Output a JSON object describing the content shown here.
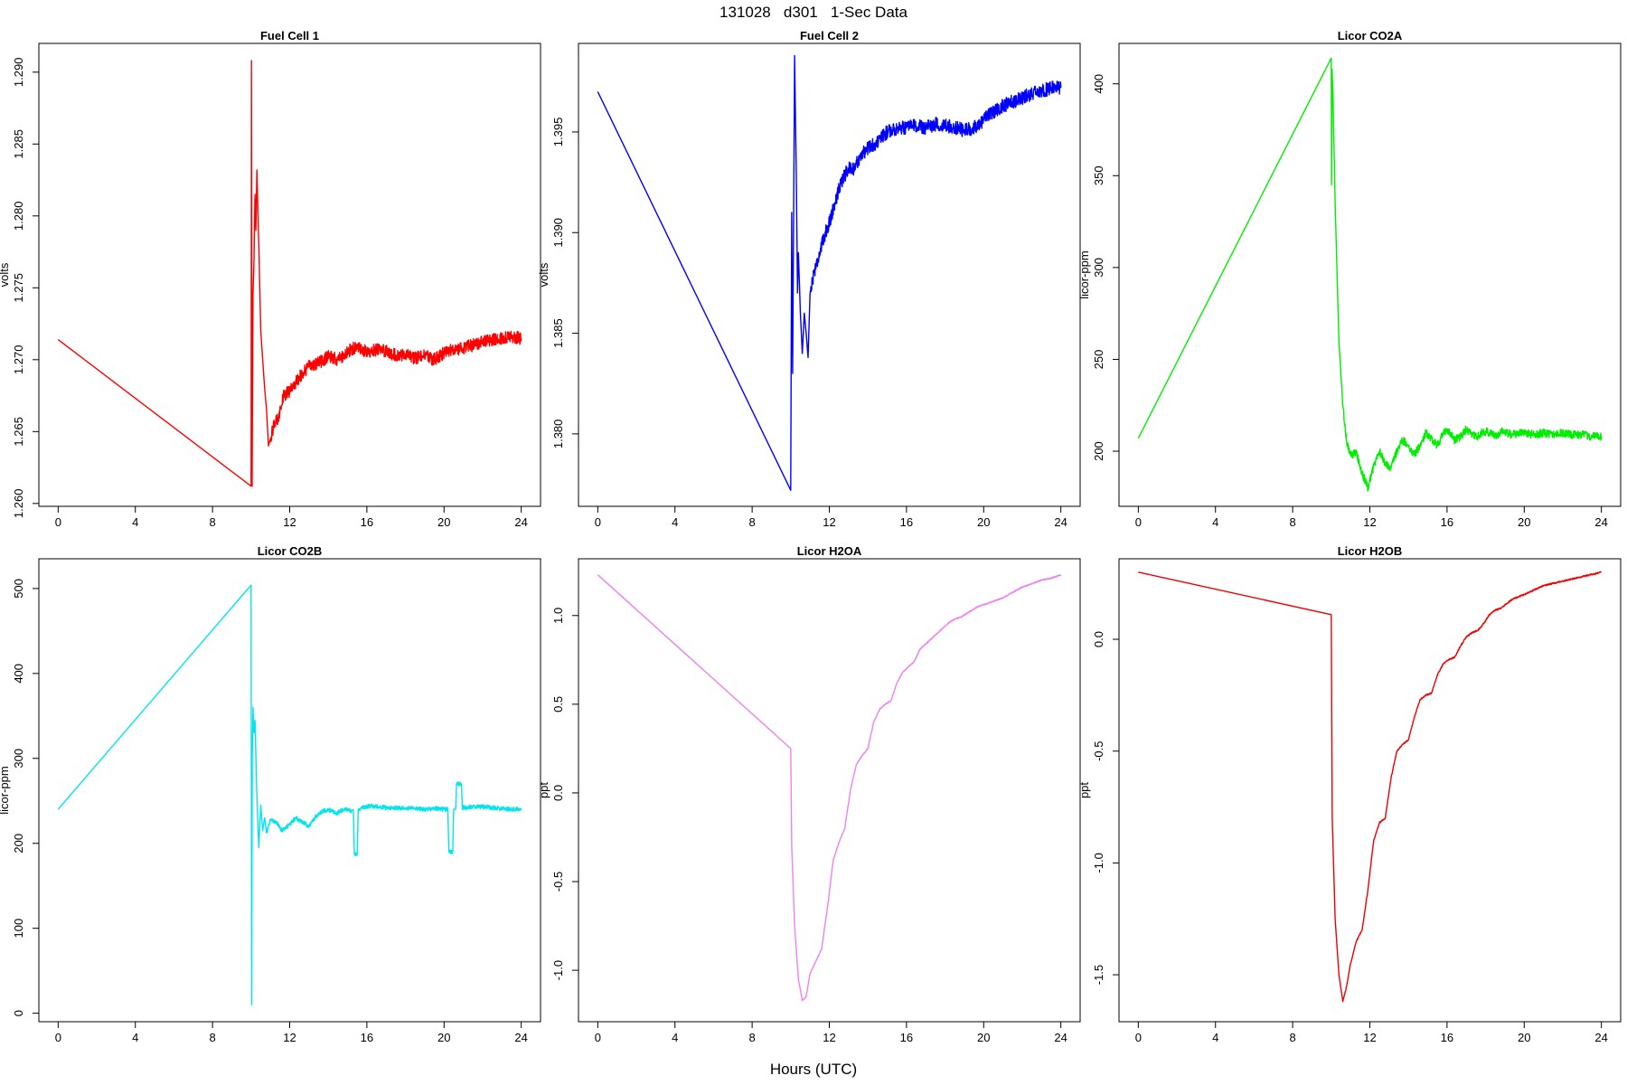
{
  "figure": {
    "title": "131028   d301   1-Sec Data",
    "xlabel": "Hours (UTC)"
  },
  "chart_data": [
    {
      "type": "line",
      "title": "Fuel Cell 1",
      "ylabel": "volts",
      "color": "#ff0000",
      "xlim": [
        -1,
        25
      ],
      "ylim": [
        1.2598,
        1.292
      ],
      "xticks": [
        0,
        4,
        8,
        12,
        16,
        20,
        24
      ],
      "yticks": [
        "1.260",
        "1.265",
        "1.270",
        "1.275",
        "1.280",
        "1.285",
        "1.290"
      ],
      "x": [
        0,
        10,
        10.02,
        10.05,
        10.1,
        10.15,
        10.2,
        10.25,
        10.3,
        10.4,
        10.5,
        10.6,
        10.7,
        10.8,
        10.9,
        11,
        11.2,
        11.4,
        11.7,
        12,
        12.5,
        13,
        13.5,
        14,
        14.5,
        15,
        15.5,
        16,
        16.5,
        17,
        17.5,
        18,
        18.5,
        19,
        19.5,
        20,
        20.5,
        21,
        21.5,
        22,
        22.5,
        23,
        23.5,
        24
      ],
      "y": [
        1.2714,
        1.2612,
        1.2908,
        1.2612,
        1.2745,
        1.277,
        1.2815,
        1.279,
        1.2832,
        1.278,
        1.272,
        1.27,
        1.268,
        1.2665,
        1.264,
        1.2645,
        1.2655,
        1.266,
        1.2675,
        1.2678,
        1.2688,
        1.2695,
        1.2698,
        1.2702,
        1.27,
        1.2705,
        1.271,
        1.2705,
        1.2707,
        1.2706,
        1.2703,
        1.2704,
        1.2701,
        1.2703,
        1.27,
        1.2705,
        1.2707,
        1.2708,
        1.271,
        1.2713,
        1.2714,
        1.2715,
        1.2716,
        1.2715
      ],
      "noise": 0.00045
    },
    {
      "type": "line",
      "title": "Fuel Cell 2",
      "ylabel": "volts",
      "color": "#0000ff",
      "xlim": [
        -1,
        25
      ],
      "ylim": [
        1.3764,
        1.3994
      ],
      "xticks": [
        0,
        4,
        8,
        12,
        16,
        20,
        24
      ],
      "yticks": [
        "1.380",
        "1.385",
        "1.390",
        "1.395"
      ],
      "x": [
        0,
        10,
        10.05,
        10.1,
        10.2,
        10.3,
        10.35,
        10.4,
        10.5,
        10.6,
        10.7,
        10.8,
        10.9,
        11,
        11.2,
        11.5,
        11.8,
        12,
        12.3,
        12.6,
        13,
        13.3,
        13.6,
        14,
        14.5,
        15,
        15.5,
        16,
        16.5,
        17,
        17.5,
        18,
        18.5,
        19,
        19.5,
        20,
        20.5,
        21,
        21.5,
        22,
        22.5,
        23,
        23.5,
        24
      ],
      "y": [
        1.397,
        1.3772,
        1.391,
        1.383,
        1.3988,
        1.392,
        1.387,
        1.389,
        1.386,
        1.384,
        1.386,
        1.385,
        1.3838,
        1.387,
        1.388,
        1.389,
        1.39,
        1.3905,
        1.3915,
        1.3925,
        1.3932,
        1.3932,
        1.3938,
        1.3942,
        1.3945,
        1.395,
        1.3952,
        1.3952,
        1.3953,
        1.3952,
        1.3954,
        1.3953,
        1.3952,
        1.3951,
        1.3952,
        1.3956,
        1.396,
        1.3963,
        1.3965,
        1.3967,
        1.3969,
        1.397,
        1.3972,
        1.3972
      ],
      "noise": 0.00035
    },
    {
      "type": "line",
      "title": "Licor CO2A",
      "ylabel": "licor-ppm",
      "color": "#00ee00",
      "xlim": [
        -1,
        25
      ],
      "ylim": [
        170,
        422
      ],
      "xticks": [
        0,
        4,
        8,
        12,
        16,
        20,
        24
      ],
      "yticks": [
        "200",
        "250",
        "300",
        "350",
        "400"
      ],
      "x": [
        0,
        10,
        10.02,
        10.04,
        10.1,
        10.2,
        10.4,
        10.6,
        10.8,
        11,
        11.3,
        11.6,
        11.9,
        12.2,
        12.5,
        12.8,
        13.1,
        13.4,
        13.7,
        14,
        14.3,
        14.6,
        14.9,
        15.2,
        15.5,
        15.8,
        16.1,
        16.4,
        16.7,
        17,
        17.3,
        17.6,
        17.9,
        18.2,
        18.5,
        18.8,
        19.1,
        19.4,
        19.7,
        20,
        20.5,
        21,
        21.5,
        22,
        22.5,
        23,
        23.5,
        24
      ],
      "y": [
        207,
        414,
        345,
        408,
        390,
        335,
        260,
        225,
        205,
        198,
        199,
        188,
        180,
        192,
        200,
        193,
        191,
        200,
        206,
        203,
        198,
        203,
        210,
        207,
        203,
        210,
        211,
        206,
        208,
        212,
        209,
        208,
        211,
        210,
        208,
        211,
        210,
        209,
        210,
        210,
        209,
        210,
        209,
        210,
        209,
        209,
        208,
        208
      ],
      "noise": 2.2
    },
    {
      "type": "line",
      "title": "Licor CO2B",
      "ylabel": "licor-ppm",
      "color": "#00e5ee",
      "xlim": [
        -1,
        25
      ],
      "ylim": [
        -10,
        535
      ],
      "xticks": [
        0,
        4,
        8,
        12,
        16,
        20,
        24
      ],
      "yticks": [
        "0",
        "100",
        "200",
        "300",
        "400",
        "500"
      ],
      "x": [
        0,
        10,
        10.03,
        10.06,
        10.1,
        10.15,
        10.2,
        10.3,
        10.4,
        10.5,
        10.6,
        10.7,
        10.8,
        11,
        11.3,
        11.6,
        12,
        12.3,
        12.6,
        13,
        13.3,
        13.6,
        14,
        14.4,
        14.8,
        15.2,
        15.3,
        15.35,
        15.5,
        15.55,
        15.8,
        16.2,
        16.6,
        17,
        17.5,
        18,
        18.5,
        19,
        19.5,
        20,
        20.2,
        20.25,
        20.45,
        20.5,
        20.6,
        20.65,
        20.9,
        20.95,
        21.5,
        22,
        22.5,
        23,
        23.5,
        24
      ],
      "y": [
        240,
        504,
        10,
        300,
        360,
        330,
        345,
        255,
        195,
        245,
        215,
        230,
        212,
        228,
        225,
        215,
        222,
        230,
        226,
        220,
        230,
        237,
        240,
        235,
        240,
        238,
        240,
        188,
        188,
        240,
        242,
        244,
        243,
        242,
        242,
        241,
        241,
        240,
        241,
        240,
        240,
        190,
        190,
        240,
        240,
        270,
        270,
        242,
        243,
        243,
        242,
        241,
        240,
        240
      ],
      "noise": 2.5
    },
    {
      "type": "line",
      "title": "Licor H2OA",
      "ylabel": "ppt",
      "color": "#ee82ee",
      "xlim": [
        -1,
        25
      ],
      "ylim": [
        -1.29,
        1.32
      ],
      "xticks": [
        0,
        4,
        8,
        12,
        16,
        20,
        24
      ],
      "yticks": [
        "-1.0",
        "-0.5",
        "0.0",
        "0.5",
        "1.0"
      ],
      "x": [
        0,
        10,
        10.05,
        10.2,
        10.4,
        10.6,
        10.8,
        11,
        11.3,
        11.6,
        11.9,
        12.2,
        12.5,
        12.8,
        13.1,
        13.4,
        13.7,
        14,
        14.3,
        14.6,
        14.9,
        15.2,
        15.5,
        15.8,
        16.1,
        16.4,
        16.7,
        17,
        17.3,
        17.6,
        17.9,
        18.2,
        18.5,
        18.8,
        19.1,
        19.4,
        19.7,
        20,
        20.5,
        21,
        21.5,
        22,
        22.5,
        23,
        23.5,
        24
      ],
      "y": [
        1.23,
        0.25,
        -0.3,
        -0.75,
        -1.05,
        -1.17,
        -1.15,
        -1.02,
        -0.95,
        -0.88,
        -0.65,
        -0.38,
        -0.28,
        -0.2,
        0.02,
        0.16,
        0.21,
        0.25,
        0.4,
        0.47,
        0.5,
        0.52,
        0.62,
        0.68,
        0.71,
        0.74,
        0.81,
        0.84,
        0.87,
        0.9,
        0.93,
        0.96,
        0.98,
        0.99,
        1.01,
        1.03,
        1.05,
        1.06,
        1.08,
        1.1,
        1.13,
        1.16,
        1.18,
        1.2,
        1.21,
        1.23
      ],
      "noise": 0.003
    },
    {
      "type": "line",
      "title": "Licor H2OB",
      "ylabel": "ppt",
      "color": "#ee0000",
      "xlim": [
        -1,
        25
      ],
      "ylim": [
        -1.71,
        0.36
      ],
      "xticks": [
        0,
        4,
        8,
        12,
        16,
        20,
        24
      ],
      "yticks": [
        "-1.5",
        "-1.0",
        "-0.5",
        "0.0"
      ],
      "x": [
        0,
        10,
        10.05,
        10.2,
        10.4,
        10.6,
        10.8,
        11,
        11.3,
        11.6,
        11.9,
        12.2,
        12.5,
        12.8,
        13.1,
        13.4,
        13.7,
        14,
        14.3,
        14.6,
        14.9,
        15.2,
        15.5,
        15.8,
        16.1,
        16.4,
        16.7,
        17,
        17.3,
        17.6,
        17.9,
        18.2,
        18.5,
        18.8,
        19.1,
        19.4,
        19.7,
        20,
        20.5,
        21,
        21.5,
        22,
        22.5,
        23,
        23.5,
        24
      ],
      "y": [
        0.3,
        0.11,
        -0.8,
        -1.25,
        -1.5,
        -1.62,
        -1.55,
        -1.45,
        -1.35,
        -1.3,
        -1.12,
        -0.9,
        -0.82,
        -0.8,
        -0.62,
        -0.5,
        -0.47,
        -0.45,
        -0.35,
        -0.27,
        -0.25,
        -0.24,
        -0.16,
        -0.11,
        -0.09,
        -0.08,
        -0.03,
        0.01,
        0.03,
        0.04,
        0.07,
        0.11,
        0.13,
        0.14,
        0.16,
        0.18,
        0.19,
        0.2,
        0.22,
        0.24,
        0.25,
        0.26,
        0.27,
        0.28,
        0.29,
        0.3
      ],
      "noise": 0.003
    }
  ]
}
